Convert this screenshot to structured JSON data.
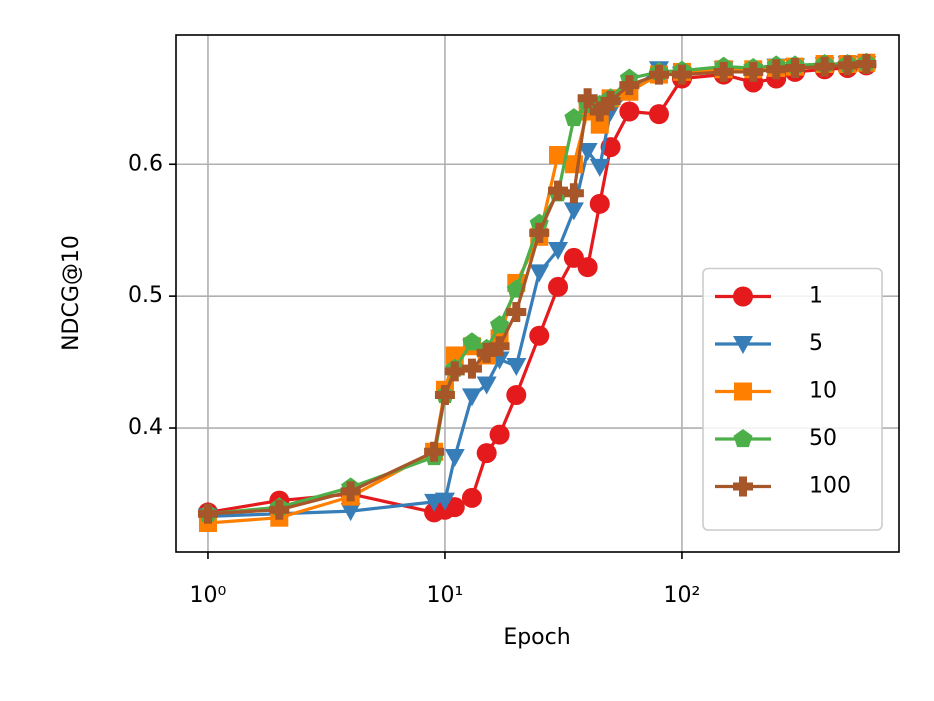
{
  "chart_data": {
    "type": "line",
    "xlabel": "Epoch",
    "ylabel": "NDCG@10",
    "xscale": "log",
    "grid": true,
    "legend": "lower right",
    "x": [
      1,
      2,
      4,
      9,
      10,
      11,
      13,
      15,
      17,
      20,
      25,
      30,
      35,
      40,
      45,
      50,
      60,
      80,
      100,
      150,
      200,
      250,
      300,
      400,
      500,
      600
    ],
    "series": [
      {
        "name": "1",
        "color": "#e41a1c",
        "marker": "circle",
        "values": [
          0.336,
          0.345,
          0.35,
          0.336,
          0.338,
          0.34,
          0.347,
          0.381,
          0.395,
          0.425,
          0.47,
          0.507,
          0.529,
          0.522,
          0.57,
          0.613,
          0.64,
          0.638,
          0.665,
          0.668,
          0.662,
          0.665,
          0.67,
          0.672,
          0.673,
          0.675
        ]
      },
      {
        "name": "5",
        "color": "#377eb8",
        "marker": "triangle-down",
        "values": [
          0.333,
          0.335,
          0.337,
          0.344,
          0.345,
          0.378,
          0.424,
          0.433,
          0.452,
          0.447,
          0.518,
          0.535,
          0.565,
          0.61,
          0.598,
          0.64,
          0.655,
          0.672,
          0.668,
          0.672,
          0.67,
          0.674,
          0.674,
          0.675,
          0.676,
          0.676
        ]
      },
      {
        "name": "10",
        "color": "#ff7f00",
        "marker": "square",
        "values": [
          0.328,
          0.332,
          0.348,
          0.382,
          0.429,
          0.455,
          0.462,
          0.455,
          0.468,
          0.51,
          0.545,
          0.607,
          0.6,
          0.64,
          0.63,
          0.65,
          0.655,
          0.668,
          0.67,
          0.672,
          0.672,
          0.673,
          0.674,
          0.676,
          0.676,
          0.677
        ]
      },
      {
        "name": "50",
        "color": "#4daf4a",
        "marker": "pentagon",
        "values": [
          0.335,
          0.34,
          0.355,
          0.378,
          0.425,
          0.445,
          0.465,
          0.46,
          0.478,
          0.505,
          0.555,
          0.578,
          0.635,
          0.645,
          0.645,
          0.65,
          0.665,
          0.67,
          0.671,
          0.674,
          0.673,
          0.675,
          0.675,
          0.676,
          0.676,
          0.677
        ]
      },
      {
        "name": "100",
        "color": "#a65628",
        "marker": "plus",
        "values": [
          0.335,
          0.338,
          0.352,
          0.382,
          0.425,
          0.443,
          0.445,
          0.457,
          0.462,
          0.488,
          0.548,
          0.58,
          0.578,
          0.65,
          0.64,
          0.648,
          0.66,
          0.668,
          0.668,
          0.67,
          0.67,
          0.672,
          0.673,
          0.674,
          0.675,
          0.676
        ]
      }
    ],
    "xlim": [
      0.733,
      824
    ],
    "ylim": [
      0.306,
      0.698
    ],
    "xticks": [
      {
        "value": 1,
        "label": "10⁰"
      },
      {
        "value": 10,
        "label": "10¹"
      },
      {
        "value": 100,
        "label": "10²"
      }
    ],
    "yticks": [
      0.4,
      0.5,
      0.6
    ]
  }
}
